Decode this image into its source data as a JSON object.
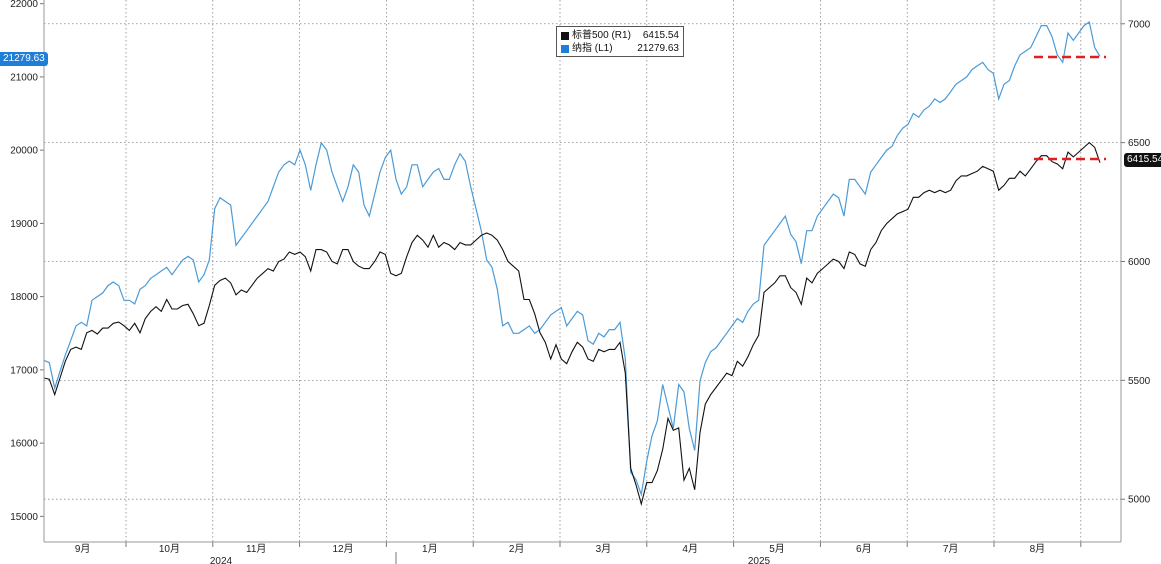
{
  "chart_data": {
    "type": "line",
    "x_labels": [
      "9月",
      "10月",
      "11月",
      "12月",
      "1月",
      "2月",
      "3月",
      "4月",
      "5月",
      "6月",
      "7月",
      "8月"
    ],
    "year_labels": [
      "2024",
      "2025"
    ],
    "left_axis": {
      "ticks": [
        15000,
        16000,
        17000,
        18000,
        19000,
        20000,
        21000,
        22000
      ],
      "ylim": [
        14650,
        22050
      ]
    },
    "right_axis": {
      "ticks": [
        5000,
        5500,
        6000,
        6500,
        7000
      ],
      "ylim": [
        4820,
        7100
      ]
    },
    "grid": true,
    "legend_placement": "top-center",
    "series": [
      {
        "name": "标普500 (R1)",
        "axis": "right",
        "color": "#111111",
        "last_value": "6415.54",
        "values": [
          5510,
          5505,
          5440,
          5510,
          5580,
          5630,
          5640,
          5630,
          5700,
          5710,
          5695,
          5720,
          5720,
          5740,
          5745,
          5730,
          5710,
          5740,
          5700,
          5760,
          5790,
          5810,
          5790,
          5840,
          5800,
          5800,
          5815,
          5820,
          5780,
          5730,
          5740,
          5815,
          5900,
          5920,
          5930,
          5910,
          5860,
          5880,
          5870,
          5900,
          5930,
          5950,
          5970,
          5960,
          6000,
          6010,
          6040,
          6030,
          6040,
          6020,
          5960,
          6050,
          6050,
          6040,
          6000,
          5990,
          6050,
          6050,
          6000,
          5980,
          5970,
          5970,
          6000,
          6040,
          6030,
          5950,
          5940,
          5950,
          6020,
          6080,
          6110,
          6090,
          6060,
          6110,
          6060,
          6080,
          6070,
          6050,
          6080,
          6070,
          6070,
          6090,
          6110,
          6120,
          6110,
          6090,
          6050,
          6000,
          5980,
          5960,
          5840,
          5840,
          5780,
          5700,
          5660,
          5590,
          5650,
          5590,
          5570,
          5620,
          5660,
          5640,
          5590,
          5580,
          5630,
          5620,
          5630,
          5630,
          5660,
          5530,
          5130,
          5060,
          4980,
          5070,
          5070,
          5120,
          5210,
          5340,
          5290,
          5300,
          5080,
          5130,
          5040,
          5280,
          5400,
          5440,
          5470,
          5500,
          5530,
          5520,
          5580,
          5560,
          5600,
          5650,
          5690,
          5870,
          5890,
          5910,
          5940,
          5940,
          5890,
          5870,
          5820,
          5930,
          5910,
          5950,
          5970,
          5990,
          6010,
          6000,
          5970,
          6040,
          6030,
          5990,
          5980,
          6050,
          6080,
          6130,
          6160,
          6180,
          6200,
          6210,
          6220,
          6270,
          6270,
          6290,
          6300,
          6290,
          6300,
          6290,
          6300,
          6340,
          6360,
          6360,
          6370,
          6380,
          6400,
          6390,
          6380,
          6300,
          6320,
          6350,
          6350,
          6380,
          6360,
          6390,
          6420,
          6445,
          6445,
          6420,
          6410,
          6390,
          6460,
          6440,
          6460,
          6480,
          6500,
          6480,
          6415.54
        ]
      },
      {
        "name": "纳指 (L1)",
        "axis": "left",
        "color": "#4a9bd8",
        "last_value": "21279.63",
        "values": [
          17130,
          17100,
          16750,
          16980,
          17200,
          17400,
          17600,
          17650,
          17600,
          17950,
          18000,
          18050,
          18150,
          18200,
          18150,
          17950,
          17950,
          17900,
          18100,
          18150,
          18250,
          18300,
          18350,
          18400,
          18300,
          18400,
          18500,
          18550,
          18500,
          18200,
          18300,
          18500,
          19200,
          19350,
          19300,
          19250,
          18700,
          18800,
          18900,
          19000,
          19100,
          19200,
          19300,
          19500,
          19700,
          19800,
          19850,
          19800,
          20000,
          19800,
          19450,
          19800,
          20100,
          20000,
          19700,
          19500,
          19300,
          19500,
          19800,
          19700,
          19250,
          19100,
          19400,
          19700,
          19900,
          20000,
          19600,
          19400,
          19500,
          19800,
          19800,
          19500,
          19600,
          19700,
          19750,
          19600,
          19600,
          19800,
          19950,
          19850,
          19500,
          19200,
          18900,
          18500,
          18400,
          18100,
          17600,
          17650,
          17500,
          17500,
          17550,
          17600,
          17500,
          17550,
          17650,
          17750,
          17800,
          17850,
          17600,
          17700,
          17800,
          17750,
          17400,
          17350,
          17500,
          17450,
          17550,
          17550,
          17650,
          17150,
          15600,
          15500,
          15300,
          15750,
          16100,
          16300,
          16800,
          16500,
          16200,
          16800,
          16700,
          16200,
          15900,
          16850,
          17100,
          17250,
          17300,
          17400,
          17500,
          17600,
          17700,
          17650,
          17800,
          17900,
          17950,
          18700,
          18800,
          18900,
          19000,
          19100,
          18850,
          18750,
          18450,
          18900,
          18900,
          19100,
          19200,
          19300,
          19400,
          19350,
          19100,
          19600,
          19600,
          19500,
          19400,
          19700,
          19800,
          19900,
          20000,
          20050,
          20200,
          20300,
          20350,
          20500,
          20450,
          20550,
          20600,
          20700,
          20650,
          20700,
          20800,
          20900,
          20950,
          21000,
          21100,
          21150,
          21200,
          21100,
          21050,
          20700,
          20900,
          20950,
          21150,
          21300,
          21350,
          21400,
          21550,
          21700,
          21700,
          21550,
          21300,
          21200,
          21600,
          21500,
          21600,
          21700,
          21750,
          21400,
          21279.63
        ]
      }
    ]
  }
}
